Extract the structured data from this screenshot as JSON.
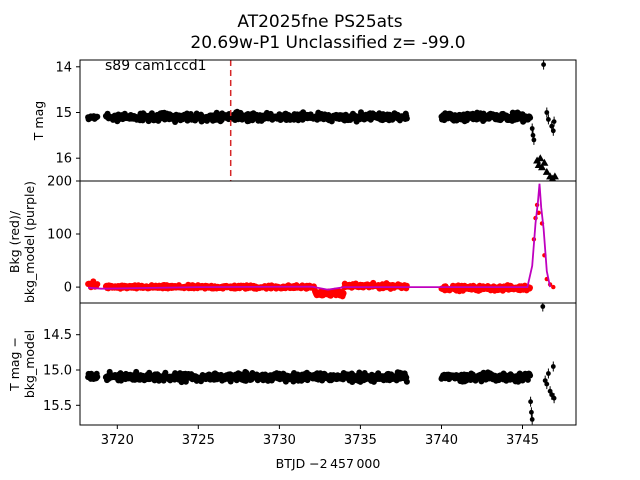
{
  "chart_data": {
    "type": "scatter",
    "title_line1": "AT2025fne  PS25ats",
    "title_line2": "20.69w-P1 Unclassified z= -99.0",
    "xlabel": "BTJD −2 457 000",
    "xlim": [
      3717.7,
      3748.3
    ],
    "x_ticks": [
      3720,
      3725,
      3730,
      3735,
      3740,
      3745
    ],
    "x_tick_labels": [
      "3720",
      "3725",
      "3730",
      "3735",
      "3740",
      "3745"
    ],
    "panels": [
      {
        "name": "tmag",
        "ylabel_lines": [
          "T mag"
        ],
        "ylim": [
          16.5,
          13.85
        ],
        "y_ticks": [
          14,
          15,
          16
        ],
        "y_tick_labels": [
          "14",
          "15",
          "16"
        ],
        "annotation": "s89 cam1ccd1",
        "vline_x": 3727.0,
        "vline_color": "#d62728",
        "segments": [
          {
            "x_start": 3718.2,
            "x_end": 3718.8,
            "level": 15.1,
            "scatter": 0.05
          },
          {
            "x_start": 3719.3,
            "x_end": 3737.9,
            "level": 15.1,
            "scatter": 0.07
          },
          {
            "x_start": 3740.0,
            "x_end": 3745.5,
            "level": 15.1,
            "scatter": 0.07
          }
        ],
        "extra_points": [
          {
            "x": 3745.6,
            "y": 15.35
          },
          {
            "x": 3745.65,
            "y": 15.5
          },
          {
            "x": 3745.7,
            "y": 15.6
          },
          {
            "x": 3746.3,
            "y": 13.95
          },
          {
            "x": 3746.5,
            "y": 15.0
          },
          {
            "x": 3746.6,
            "y": 15.15
          },
          {
            "x": 3746.8,
            "y": 15.3
          },
          {
            "x": 3746.9,
            "y": 15.4
          },
          {
            "x": 3746.95,
            "y": 15.2
          }
        ],
        "upper_limits": [
          {
            "x": 3745.9,
            "y": 16.05
          },
          {
            "x": 3746.0,
            "y": 16.15
          },
          {
            "x": 3746.1,
            "y": 16.0
          },
          {
            "x": 3746.2,
            "y": 16.2
          },
          {
            "x": 3746.35,
            "y": 16.1
          },
          {
            "x": 3746.5,
            "y": 16.3
          },
          {
            "x": 3746.7,
            "y": 16.4
          },
          {
            "x": 3746.85,
            "y": 16.45
          },
          {
            "x": 3747.0,
            "y": 16.4
          }
        ]
      },
      {
        "name": "background",
        "ylabel_lines": [
          "Bkg (red)/",
          "bkg_model (purple)"
        ],
        "ylim": [
          -30,
          200
        ],
        "y_ticks": [
          0,
          100,
          200
        ],
        "y_tick_labels": [
          "0",
          "100",
          "200"
        ],
        "bkg_color": "#ff0000",
        "model_color": "#bf00bf",
        "bkg_segments": [
          {
            "x_start": 3718.2,
            "x_end": 3718.8,
            "level": 5,
            "scatter": 6
          },
          {
            "x_start": 3719.3,
            "x_end": 3732.2,
            "level": 0,
            "scatter": 3
          },
          {
            "x_start": 3732.2,
            "x_end": 3734.0,
            "level": -12,
            "scatter": 4
          },
          {
            "x_start": 3734.0,
            "x_end": 3737.9,
            "level": 2,
            "scatter": 4
          },
          {
            "x_start": 3740.0,
            "x_end": 3745.5,
            "level": -2,
            "scatter": 4
          }
        ],
        "model_line": {
          "x": [
            3718.2,
            3719.0,
            3725.0,
            3732.0,
            3733.0,
            3734.0,
            3738.0,
            3740.0,
            3745.3,
            3745.6,
            3745.8,
            3745.95,
            3746.05,
            3746.15,
            3746.3,
            3746.5,
            3746.7
          ],
          "y": [
            -1,
            -3,
            0,
            1,
            -5,
            0,
            0,
            0,
            0,
            40,
            120,
            160,
            195,
            150,
            110,
            30,
            0
          ]
        },
        "spike_points": [
          {
            "x": 3745.7,
            "y": 90
          },
          {
            "x": 3745.8,
            "y": 130
          },
          {
            "x": 3745.9,
            "y": 155
          },
          {
            "x": 3746.0,
            "y": 140
          },
          {
            "x": 3746.2,
            "y": 120
          },
          {
            "x": 3746.35,
            "y": 60
          },
          {
            "x": 3746.5,
            "y": 15
          },
          {
            "x": 3746.7,
            "y": 5
          },
          {
            "x": 3746.9,
            "y": 0
          }
        ]
      },
      {
        "name": "corrected",
        "ylabel_lines": [
          "T mag −",
          "bkg_model"
        ],
        "ylim": [
          15.78,
          14.05
        ],
        "y_ticks": [
          14.5,
          15.0,
          15.5
        ],
        "y_tick_labels": [
          "14.5",
          "15.0",
          "15.5"
        ],
        "segments": [
          {
            "x_start": 3718.2,
            "x_end": 3718.8,
            "level": 15.1,
            "scatter": 0.04
          },
          {
            "x_start": 3719.3,
            "x_end": 3737.9,
            "level": 15.1,
            "scatter": 0.05
          },
          {
            "x_start": 3740.0,
            "x_end": 3745.5,
            "level": 15.1,
            "scatter": 0.05
          }
        ],
        "extra_points": [
          {
            "x": 3745.5,
            "y": 15.45
          },
          {
            "x": 3745.55,
            "y": 15.6
          },
          {
            "x": 3745.6,
            "y": 15.7
          },
          {
            "x": 3746.25,
            "y": 14.1
          },
          {
            "x": 3746.4,
            "y": 15.15
          },
          {
            "x": 3746.5,
            "y": 15.2
          },
          {
            "x": 3746.6,
            "y": 15.05
          },
          {
            "x": 3746.7,
            "y": 15.3
          },
          {
            "x": 3746.8,
            "y": 15.35
          },
          {
            "x": 3746.9,
            "y": 14.95
          },
          {
            "x": 3746.95,
            "y": 15.4
          }
        ]
      }
    ]
  }
}
